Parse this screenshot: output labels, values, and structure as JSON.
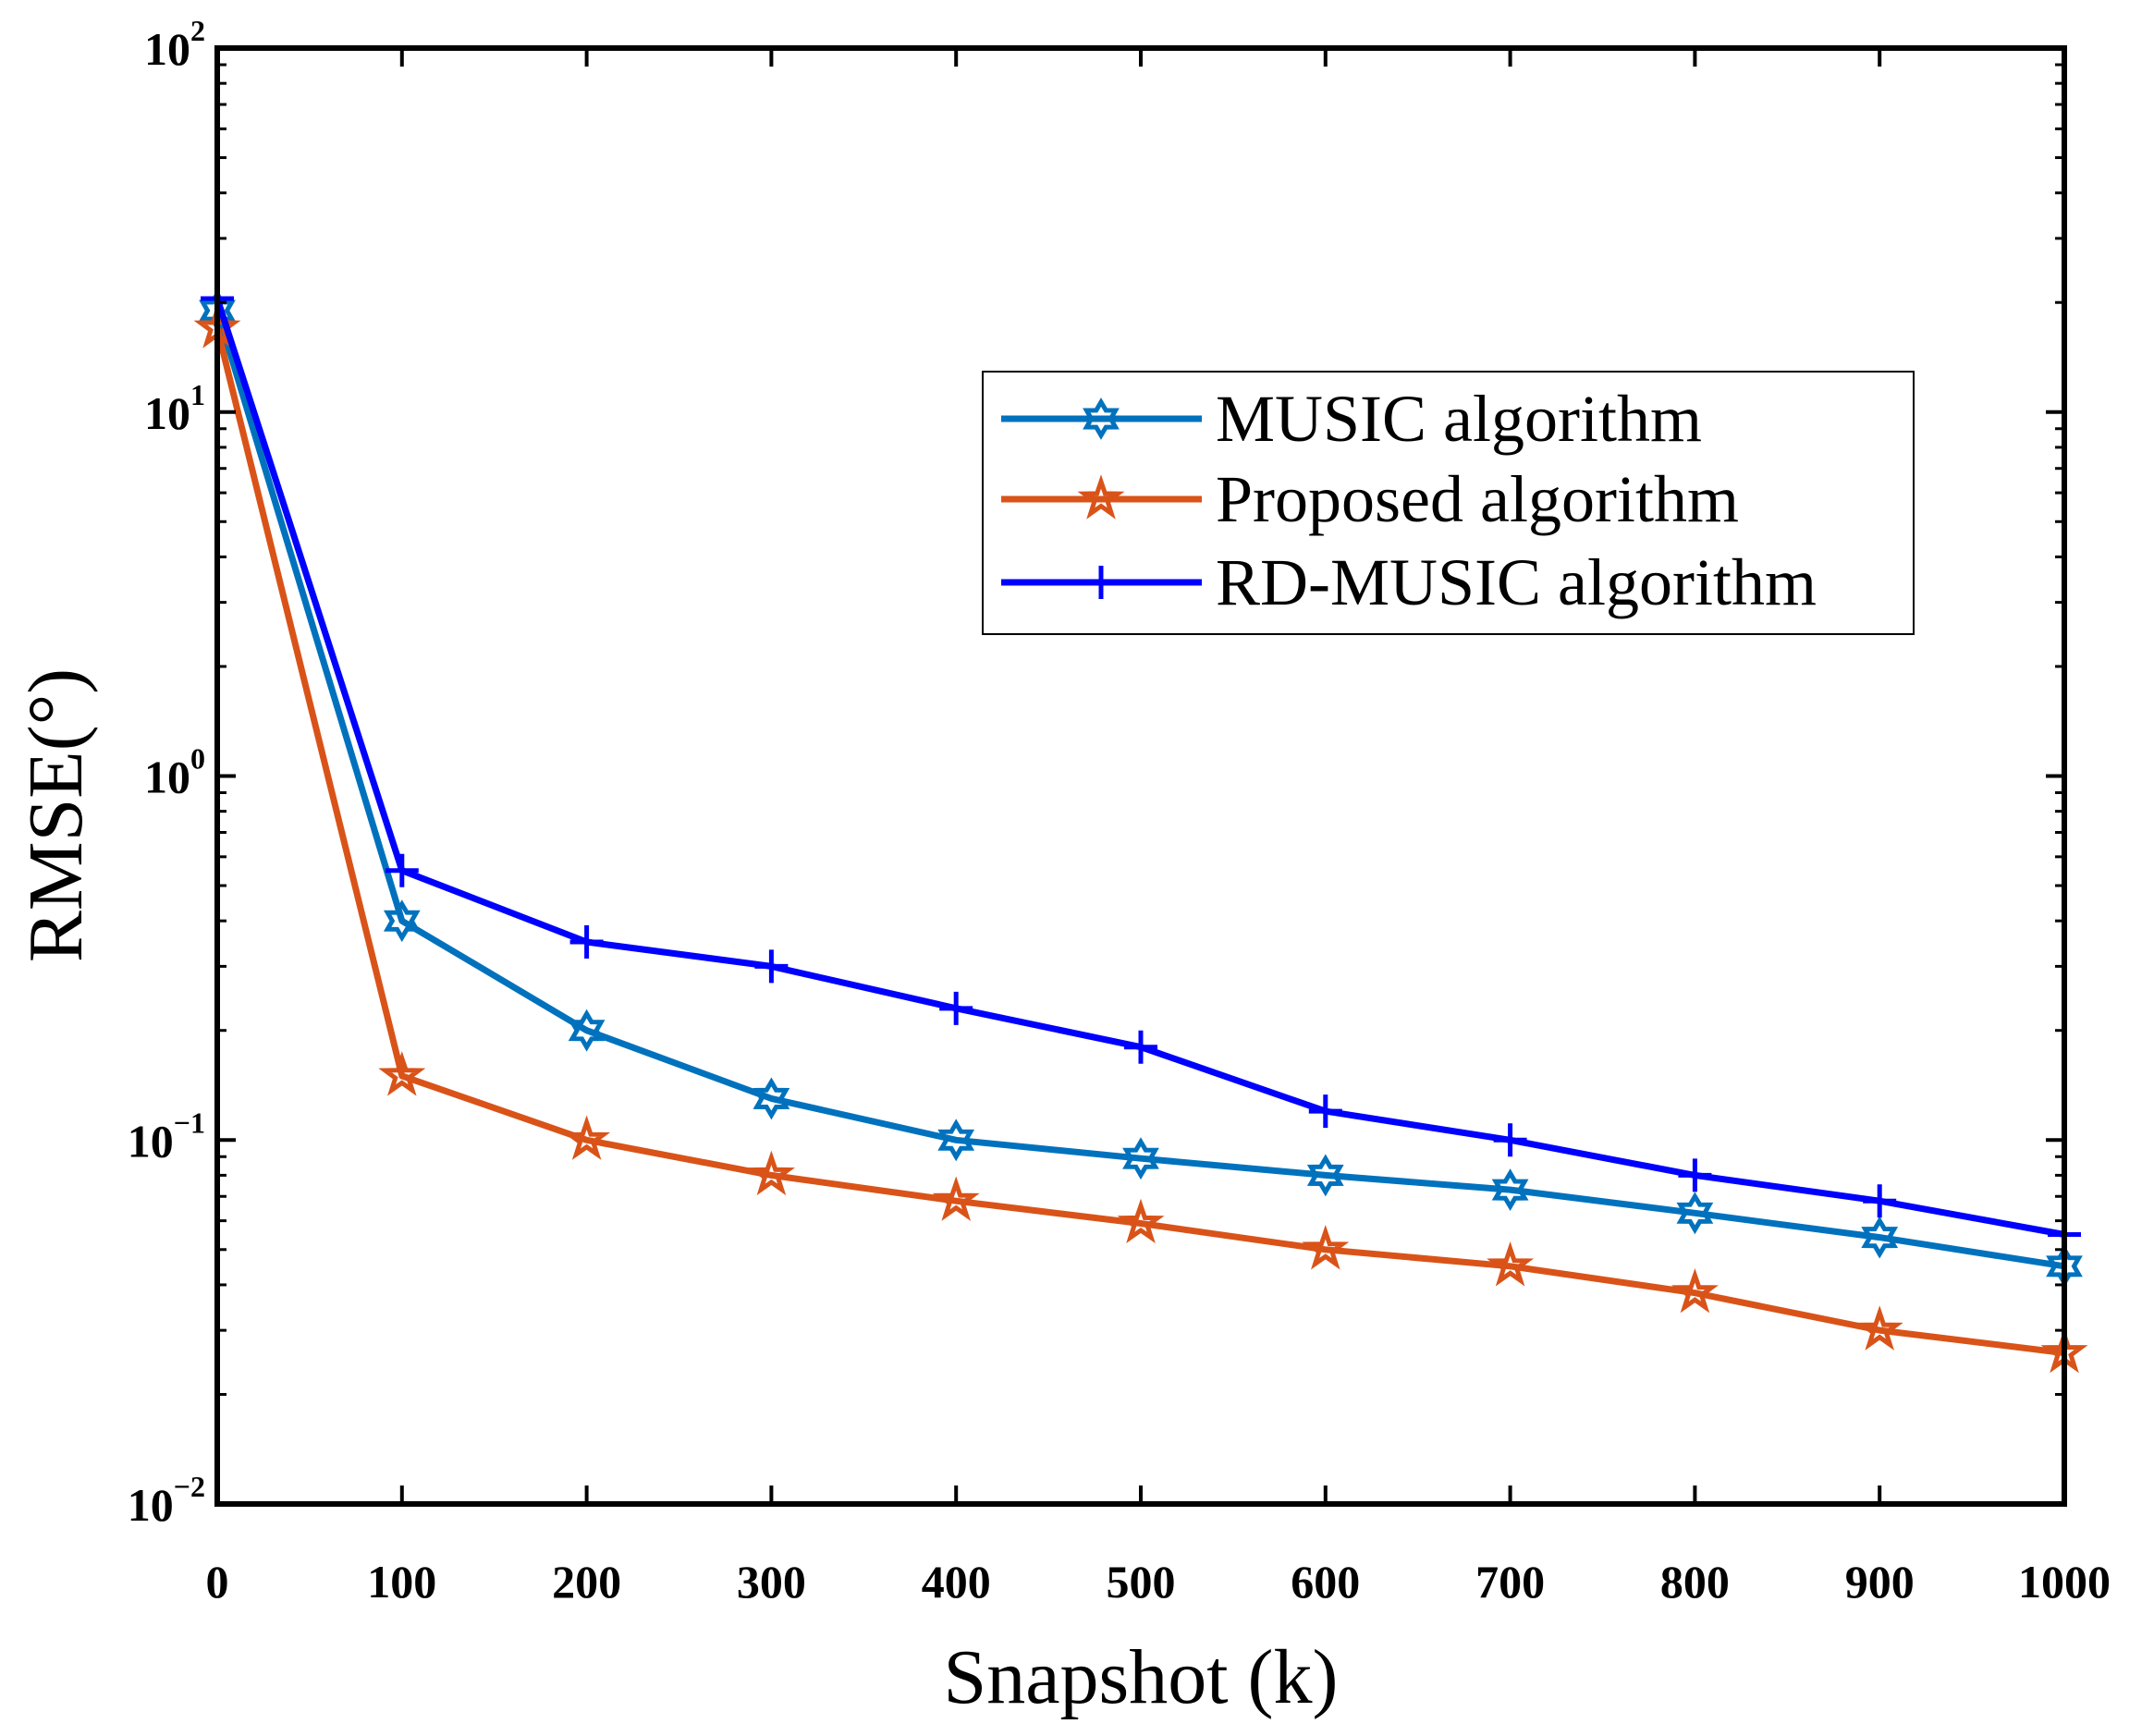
{
  "chart_data": {
    "type": "line",
    "title": "",
    "xlabel": "Snapshot (k)",
    "ylabel": "RMSE(°)",
    "yscale": "log",
    "xlim": [
      0,
      1000
    ],
    "ylim": [
      0.01,
      100
    ],
    "grid": false,
    "x_ticks": [
      0,
      100,
      200,
      300,
      400,
      500,
      600,
      700,
      800,
      900,
      1000
    ],
    "x_tick_labels": [
      "0",
      "100",
      "200",
      "300",
      "400",
      "500",
      "600",
      "700",
      "800",
      "900",
      "1000"
    ],
    "y_ticks": [
      {
        "value": 0.01,
        "base": "10",
        "exp": "−2"
      },
      {
        "value": 0.1,
        "base": "10",
        "exp": "−1"
      },
      {
        "value": 1,
        "base": "10",
        "exp": "0"
      },
      {
        "value": 10,
        "base": "10",
        "exp": "1"
      },
      {
        "value": 100,
        "base": "10",
        "exp": "2"
      }
    ],
    "legend_position": "upper-right",
    "x": [
      0,
      100,
      200,
      300,
      400,
      500,
      600,
      700,
      800,
      900,
      1000
    ],
    "series": [
      {
        "name": "MUSIC algorithm",
        "color": "#0072BD",
        "marker": "hexagram",
        "values": [
          19,
          0.4,
          0.2,
          0.13,
          0.1,
          0.089,
          0.08,
          0.073,
          0.063,
          0.054,
          0.045
        ]
      },
      {
        "name": "Proposed algorithm",
        "color": "#D95319",
        "marker": "pentagram",
        "values": [
          17,
          0.15,
          0.1,
          0.08,
          0.068,
          0.059,
          0.05,
          0.045,
          0.038,
          0.03,
          0.026
        ]
      },
      {
        "name": "RD-MUSIC algorithm",
        "color": "#0000FF",
        "marker": "plus",
        "values": [
          20.5,
          0.55,
          0.35,
          0.3,
          0.23,
          0.18,
          0.12,
          0.1,
          0.08,
          0.068,
          0.055
        ]
      }
    ]
  }
}
